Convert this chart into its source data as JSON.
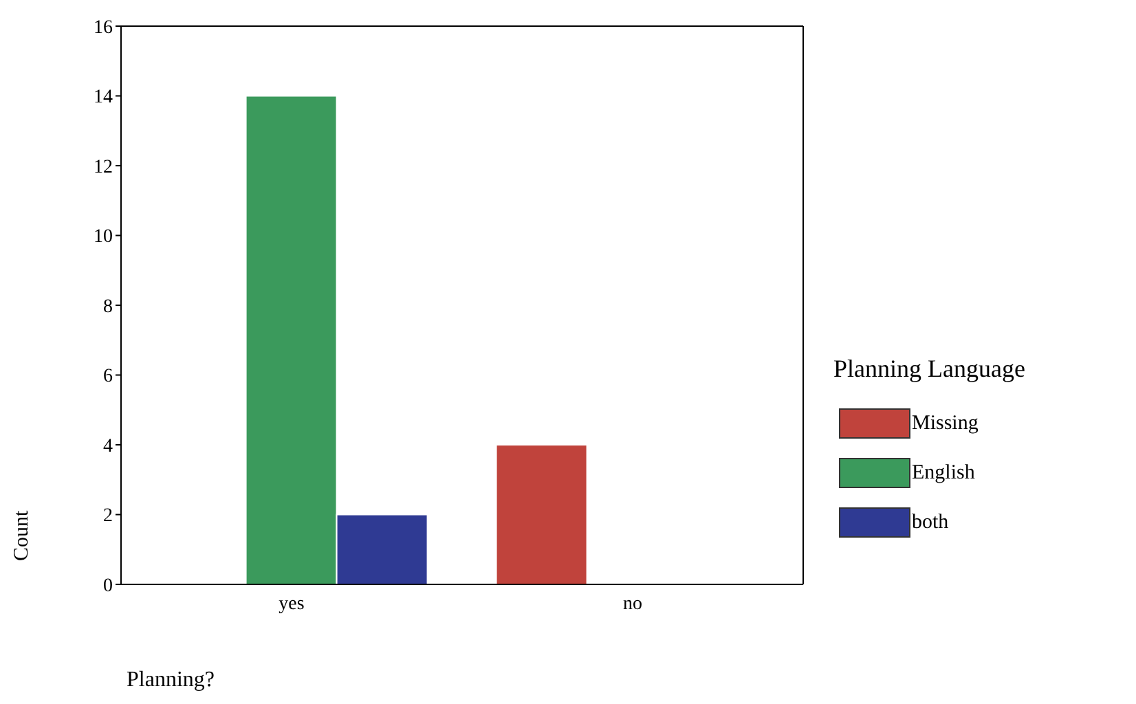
{
  "chart_data": {
    "type": "bar",
    "categories": [
      "yes",
      "no"
    ],
    "xlabel": "Planning?",
    "ylabel": "Count",
    "legend_title": "Planning Language",
    "legend": "right",
    "grid": false,
    "ylim": [
      0,
      16
    ],
    "yticks": [
      0,
      2,
      4,
      6,
      8,
      10,
      12,
      14,
      16
    ],
    "series": [
      {
        "name": "Missing",
        "color": "#c0433c",
        "values": [
          0,
          4
        ]
      },
      {
        "name": "English",
        "color": "#3b9a5c",
        "values": [
          14,
          0
        ]
      },
      {
        "name": "both",
        "color": "#2f3a93",
        "values": [
          2,
          0
        ]
      }
    ]
  }
}
